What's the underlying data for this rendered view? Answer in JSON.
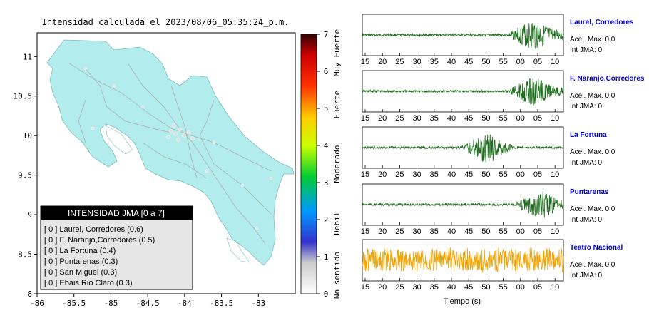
{
  "title": "Intensidad calculada el 2023/08/06_05:35:24_p.m.",
  "map": {
    "x_ticks": [
      "-86",
      "-85.5",
      "-85",
      "-84.5",
      "-84",
      "-83.5",
      "-83"
    ],
    "y_ticks": [
      "11",
      "10.5",
      "10",
      "9.5",
      "9",
      "8.5",
      "8"
    ]
  },
  "colorbar": {
    "ticks": [
      "7",
      "6",
      "5",
      "4",
      "3",
      "2",
      "1",
      "0"
    ],
    "category_labels": [
      "Muy Fuerte",
      "Fuerte",
      "Moderado",
      "Debil",
      "No sentido"
    ]
  },
  "legend": {
    "title": "INTENSIDAD JMA [0 a 7]",
    "items": [
      "[ 0 ]  Laurel, Corredores (0.6)",
      "[ 0 ]  F. Naranjo,Corredores (0.5)",
      "[ 0 ]  La Fortuna (0.4)",
      "[ 0 ]  Puntarenas (0.3)",
      "[ 0 ]  San Miguel (0.3)",
      "[ 0 ]  Ebais Rio Claro (0.3)"
    ]
  },
  "traces": [
    {
      "station": "Laurel, Corredores",
      "accel": "Acel. Max. 0.0",
      "jma": "Int JMA: 0",
      "color": "#1a6e1a",
      "ticks": [
        "15",
        "20",
        "25",
        "30",
        "35",
        "40",
        "45",
        "50",
        "55",
        "00",
        "05",
        "10"
      ]
    },
    {
      "station": "F. Naranjo,Corredores",
      "accel": "Acel. Max. 0.0",
      "jma": "Int JMA: 0",
      "color": "#1a6e1a",
      "ticks": [
        "15",
        "20",
        "25",
        "30",
        "35",
        "40",
        "45",
        "50",
        "55",
        "00",
        "05",
        "10"
      ]
    },
    {
      "station": "La Fortuna",
      "accel": "Acel. Max. 0.0",
      "jma": "Int JMA: 0",
      "color": "#1a6e1a",
      "ticks": [
        "15",
        "20",
        "25",
        "30",
        "35",
        "40",
        "45",
        "50",
        "55",
        "00",
        "05",
        "10"
      ]
    },
    {
      "station": "Puntarenas",
      "accel": "Acel. Max. 0.0",
      "jma": "Int JMA: 0",
      "color": "#1a6e1a",
      "ticks": [
        "15",
        "20",
        "25",
        "30",
        "35",
        "40",
        "45",
        "50",
        "55",
        "00",
        "05",
        "10"
      ]
    },
    {
      "station": "Teatro Nacional",
      "accel": "Acel. Max. 0.0",
      "jma": "Int JMA: 0",
      "color": "#f2a400",
      "ticks": [
        "15",
        "20",
        "25",
        "30",
        "35",
        "40",
        "45",
        "50",
        "55",
        "00",
        "05",
        "10"
      ]
    }
  ],
  "time_axis_label": "Tiempo (s)",
  "colors": {
    "land": "#b3ecec",
    "station_label": "#0000cc",
    "waveform": "#1a6e1a",
    "waveform_highlight": "#f2a400",
    "legend_header": "#000000",
    "legend_bg": "#e6e6e6"
  },
  "chart_data": [
    {
      "type": "scatter",
      "title": "Intensidad calculada el 2023/08/06_05:35:24_p.m.",
      "xlabel": "",
      "ylabel": "",
      "xlim": [
        -86,
        -82.5
      ],
      "ylim": [
        8,
        11.3
      ],
      "grid": false,
      "colorbar": {
        "min": 0,
        "max": 7,
        "label_positions": "right"
      },
      "stations": [
        {
          "name": "Laurel, Corredores",
          "value": 0.6
        },
        {
          "name": "F. Naranjo,Corredores",
          "value": 0.5
        },
        {
          "name": "La Fortuna",
          "value": 0.4
        },
        {
          "name": "Puntarenas",
          "value": 0.3
        },
        {
          "name": "San Miguel",
          "value": 0.3
        },
        {
          "name": "Ebais Rio Claro",
          "value": 0.3
        }
      ]
    },
    {
      "type": "line",
      "xlabel": "Tiempo (s)",
      "xlim": [
        11,
        72
      ],
      "series": [
        {
          "name": "Laurel, Corredores",
          "peak_amplitude_relative": 1.0,
          "burst_at_s": 63
        },
        {
          "name": "F. Naranjo,Corredores",
          "peak_amplitude_relative": 0.9,
          "burst_at_s": 63
        },
        {
          "name": "La Fortuna",
          "peak_amplitude_relative": 1.0,
          "burst_at_s": 49
        },
        {
          "name": "Puntarenas",
          "peak_amplitude_relative": 0.9,
          "burst_at_s": 65
        },
        {
          "name": "Teatro Nacional",
          "peak_amplitude_relative": 1.0,
          "burst_at_s": null
        }
      ]
    }
  ]
}
